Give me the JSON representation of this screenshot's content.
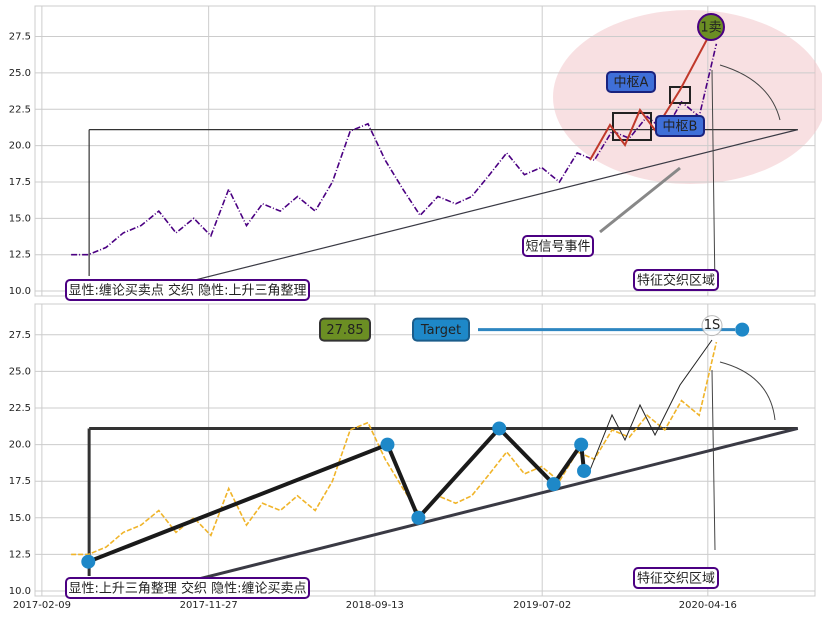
{
  "chart_data": [
    {
      "type": "line",
      "xlim": [
        "2017-01-28",
        "2020-10-20"
      ],
      "ylim": [
        9.66,
        29.6
      ],
      "yticks": [
        {
          "value": 10,
          "label": "10.0"
        },
        {
          "value": 12.5,
          "label": "12.5"
        },
        {
          "value": 15,
          "label": "15.0"
        },
        {
          "value": 17.5,
          "label": "17.5"
        },
        {
          "value": 20,
          "label": "20.0"
        },
        {
          "value": 22.5,
          "label": "22.5"
        },
        {
          "value": 25,
          "label": "25.0"
        },
        {
          "value": 27.5,
          "label": "27.5"
        }
      ],
      "grid": true,
      "resistance": 21.1,
      "series": [
        {
          "color": "#4b0082",
          "x": [
            "2017-04-01",
            "2017-05-01",
            "2017-06-01",
            "2017-07-01",
            "2017-08-01",
            "2017-09-01",
            "2017-10-01",
            "2017-11-01",
            "2017-12-01",
            "2018-01-01",
            "2018-02-01",
            "2018-03-01",
            "2018-04-01",
            "2018-05-01",
            "2018-06-01",
            "2018-07-01",
            "2018-08-01",
            "2018-09-01",
            "2018-10-01",
            "2018-11-01",
            "2018-12-01",
            "2019-01-01",
            "2019-02-01",
            "2019-03-01",
            "2019-04-01",
            "2019-05-01",
            "2019-06-01",
            "2019-07-01",
            "2019-08-01",
            "2019-09-01",
            "2019-10-01",
            "2019-11-01",
            "2019-12-01",
            "2020-01-01",
            "2020-02-01",
            "2020-03-01",
            "2020-04-01",
            "2020-05-01"
          ],
          "values": [
            12.5,
            12.5,
            13,
            14,
            14.5,
            15.5,
            14,
            15,
            13.8,
            17,
            14.5,
            16,
            15.5,
            16.5,
            15.5,
            17.5,
            21,
            21.5,
            19,
            17,
            15.2,
            16.5,
            16,
            16.5,
            18,
            19.5,
            18,
            18.5,
            17.5,
            19.5,
            19,
            21,
            20.5,
            22,
            21,
            23,
            22,
            27
          ]
        }
      ],
      "support_line": {
        "x": [
          "2017-04-15",
          "2020-09-20"
        ],
        "values": [
          9.8,
          21.1
        ]
      },
      "annotations": [
        "1卖",
        "中枢A",
        "中枢B",
        "短信号事件",
        "特征交织区域",
        "显性:缠论买卖点 交织 隐性:上升三角整理"
      ]
    },
    {
      "type": "line",
      "xlim": [
        "2017-01-28",
        "2020-10-20"
      ],
      "ylim": [
        9.66,
        29.6
      ],
      "yticks": [
        {
          "value": 10,
          "label": "10.0"
        },
        {
          "value": 12.5,
          "label": "12.5"
        },
        {
          "value": 15,
          "label": "15.0"
        },
        {
          "value": 17.5,
          "label": "17.5"
        },
        {
          "value": 20,
          "label": "20.0"
        },
        {
          "value": 22.5,
          "label": "22.5"
        },
        {
          "value": 25,
          "label": "25.0"
        },
        {
          "value": 27.5,
          "label": "27.5"
        }
      ],
      "xticks": [
        "2017-02-09",
        "2017-11-27",
        "2018-09-13",
        "2019-07-02",
        "2020-04-16"
      ],
      "grid": true,
      "resistance": 21.1,
      "target": 27.85,
      "series": [
        {
          "color": "#f0b429",
          "x": [
            "2017-04-01",
            "2017-05-01",
            "2017-06-01",
            "2017-07-01",
            "2017-08-01",
            "2017-09-01",
            "2017-10-01",
            "2017-11-01",
            "2017-12-01",
            "2018-01-01",
            "2018-02-01",
            "2018-03-01",
            "2018-04-01",
            "2018-05-01",
            "2018-06-01",
            "2018-07-01",
            "2018-08-01",
            "2018-09-01",
            "2018-10-01",
            "2018-11-01",
            "2018-12-01",
            "2019-01-01",
            "2019-02-01",
            "2019-03-01",
            "2019-04-01",
            "2019-05-01",
            "2019-06-01",
            "2019-07-01",
            "2019-08-01",
            "2019-09-01",
            "2019-10-01",
            "2019-11-01",
            "2019-12-01",
            "2020-01-01",
            "2020-02-01",
            "2020-03-01",
            "2020-04-01",
            "2020-05-01"
          ],
          "values": [
            12.5,
            12.5,
            13,
            14,
            14.5,
            15.5,
            14,
            15,
            13.8,
            17,
            14.5,
            16,
            15.5,
            16.5,
            15.5,
            17.5,
            21,
            21.5,
            19,
            17,
            15.2,
            16.5,
            16,
            16.5,
            18,
            19.5,
            18,
            18.5,
            17.5,
            19.5,
            19,
            21,
            20.5,
            22,
            21,
            23,
            22,
            27
          ]
        }
      ],
      "pivots": {
        "color": "#1e88c8",
        "x": [
          "2017-05-01",
          "2018-10-05",
          "2018-11-28",
          "2019-04-18",
          "2019-07-22",
          "2019-09-08",
          "2019-09-13",
          "2020-06-15"
        ],
        "values": [
          12,
          20,
          15,
          21.1,
          17.3,
          20,
          18.2,
          27.85
        ]
      },
      "support_line": {
        "x": [
          "2017-04-15",
          "2020-09-20"
        ],
        "values": [
          9.8,
          21.1
        ]
      },
      "annotations": [
        "Target",
        "1S",
        "特征交织区域",
        "显性:上升三角整理 交织 隐性:缠论买卖点"
      ]
    }
  ]
}
